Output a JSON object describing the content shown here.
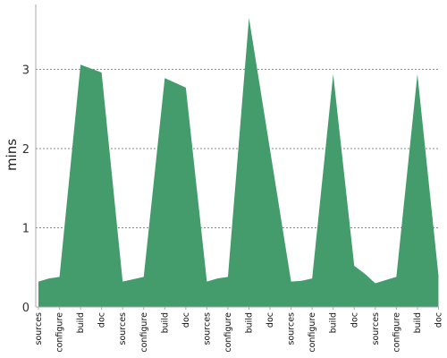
{
  "chart_data": {
    "type": "area",
    "ylabel": "mins",
    "xlabel": "",
    "title": "",
    "ylim": [
      0,
      3.8
    ],
    "yticks": [
      0,
      1,
      2,
      3
    ],
    "grid": "horizontal-dashed",
    "fill_color": "#449c6c",
    "categories": [
      "sources",
      "configure",
      "build",
      "doc",
      "sources",
      "configure",
      "build",
      "doc",
      "sources",
      "configure",
      "build",
      "doc",
      "sources",
      "configure",
      "build",
      "doc",
      "sources",
      "configure",
      "build",
      "doc"
    ],
    "points": [
      {
        "x": 0,
        "y": 0.32
      },
      {
        "x": 0.5,
        "y": 0.36
      },
      {
        "x": 1,
        "y": 0.38
      },
      {
        "x": 2,
        "y": 3.06
      },
      {
        "x": 3,
        "y": 2.96
      },
      {
        "x": 4,
        "y": 0.32
      },
      {
        "x": 4.5,
        "y": 0.35
      },
      {
        "x": 5,
        "y": 0.38
      },
      {
        "x": 6,
        "y": 2.89
      },
      {
        "x": 7,
        "y": 2.77
      },
      {
        "x": 8,
        "y": 0.32
      },
      {
        "x": 8.5,
        "y": 0.36
      },
      {
        "x": 9,
        "y": 0.38
      },
      {
        "x": 10,
        "y": 3.65
      },
      {
        "x": 12,
        "y": 0.32
      },
      {
        "x": 12.5,
        "y": 0.33
      },
      {
        "x": 13,
        "y": 0.36
      },
      {
        "x": 14,
        "y": 2.94
      },
      {
        "x": 15,
        "y": 0.52
      },
      {
        "x": 15.5,
        "y": 0.42
      },
      {
        "x": 16,
        "y": 0.3
      },
      {
        "x": 16.5,
        "y": 0.34
      },
      {
        "x": 17,
        "y": 0.38
      },
      {
        "x": 18,
        "y": 2.94
      },
      {
        "x": 19,
        "y": 0.4
      }
    ]
  }
}
